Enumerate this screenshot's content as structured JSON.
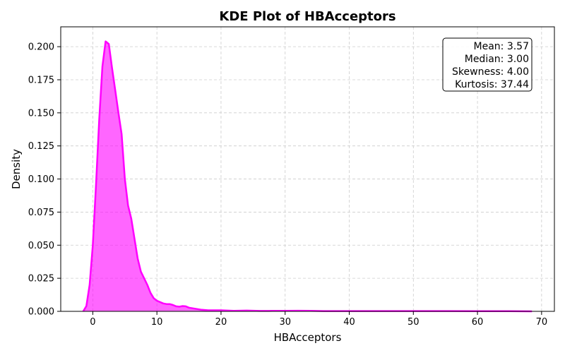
{
  "chart_data": {
    "type": "area",
    "title": "KDE Plot of HBAcceptors",
    "xlabel": "HBAcceptors",
    "ylabel": "Density",
    "xlim": [
      -5,
      72
    ],
    "ylim": [
      0,
      0.215
    ],
    "xticks": [
      0,
      10,
      20,
      30,
      40,
      50,
      60,
      70
    ],
    "yticks": [
      0.0,
      0.025,
      0.05,
      0.075,
      0.1,
      0.125,
      0.15,
      0.175,
      0.2
    ],
    "ytick_labels": [
      "0.000",
      "0.025",
      "0.050",
      "0.075",
      "0.100",
      "0.125",
      "0.150",
      "0.175",
      "0.200"
    ],
    "grid": true,
    "color": "#ff00ff",
    "series": [
      {
        "x": [
          -1.5,
          -1.0,
          -0.5,
          0,
          0.5,
          1.0,
          1.5,
          2.0,
          2.5,
          3.0,
          3.5,
          4.0,
          4.5,
          5.0,
          5.5,
          6.0,
          6.5,
          7.0,
          7.5,
          8.0,
          8.5,
          9.0,
          9.5,
          10.0,
          10.5,
          11.0,
          11.5,
          12.0,
          12.5,
          13.0,
          13.5,
          14.0,
          14.5,
          15.0,
          16.0,
          17.0,
          18.0,
          19.0,
          20.0,
          22.0,
          24.0,
          26.0,
          28.0,
          30.0,
          32.0,
          34.0,
          36.0,
          40.0,
          45.0,
          50.0,
          55.0,
          60.0,
          65.0,
          68.5
        ],
        "y": [
          0.0,
          0.004,
          0.02,
          0.05,
          0.095,
          0.145,
          0.185,
          0.204,
          0.202,
          0.184,
          0.167,
          0.15,
          0.134,
          0.1,
          0.08,
          0.07,
          0.055,
          0.04,
          0.03,
          0.025,
          0.02,
          0.014,
          0.01,
          0.008,
          0.007,
          0.006,
          0.0055,
          0.0055,
          0.0048,
          0.0038,
          0.0035,
          0.004,
          0.0038,
          0.0028,
          0.002,
          0.0012,
          0.0008,
          0.0008,
          0.0008,
          0.0004,
          0.0006,
          0.0003,
          0.0004,
          0.0004,
          0.0005,
          0.0004,
          0.0002,
          0.0002,
          0.0002,
          0.0002,
          0.0002,
          0.0001,
          0.0001,
          0.0
        ]
      }
    ],
    "stats": {
      "mean": "Mean: 3.57",
      "median": "Median: 3.00",
      "skewness": "Skewness: 4.00",
      "kurtosis": "Kurtosis: 37.44"
    },
    "stats_placement": "top-right"
  }
}
